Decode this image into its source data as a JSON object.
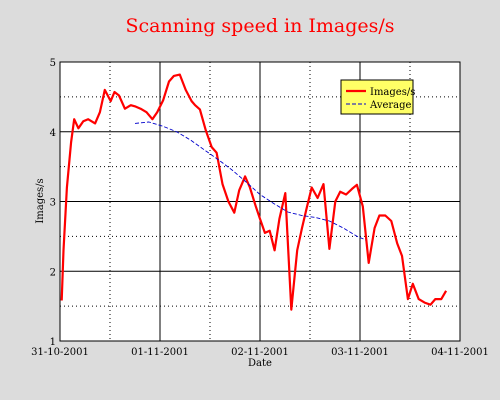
{
  "colors": {
    "background": "#dcdcdc",
    "plot_background": "#ffffff",
    "title": "#ff0000",
    "series_images": "#ff0000",
    "series_average": "#0000cc",
    "legend_background": "#ffff66"
  },
  "chart_data": {
    "type": "line",
    "title": "Scanning speed in Images/s",
    "xlabel": "Date",
    "ylabel": "Images/s",
    "x_unit": "days",
    "xlim": [
      "31-10-2001",
      "04-11-2001"
    ],
    "ylim": [
      1,
      5
    ],
    "yticks": [
      1,
      2,
      3,
      4,
      5
    ],
    "ytick_labels": [
      "1",
      "2",
      "3",
      "4",
      "5"
    ],
    "xticks": [
      "31-10-2001",
      "01-11-2001",
      "02-11-2001",
      "03-11-2001",
      "04-11-2001"
    ],
    "xtick_labels": [
      "31-10-2001",
      "01-11-2001",
      "02-11-2001",
      "03-11-2001",
      "04-11-2001"
    ],
    "grid": "major solid, minor dotted",
    "legend_position": "top-right",
    "series": [
      {
        "name": "Images/s",
        "style": "solid",
        "x": [
          "31-10-2001 00:25",
          "31-10-2001 00:50",
          "31-10-2001 01:40",
          "31-10-2001 02:40",
          "31-10-2001 03:25",
          "31-10-2001 04:25",
          "31-10-2001 05:35",
          "31-10-2001 06:45",
          "31-10-2001 08:25",
          "31-10-2001 09:35",
          "31-10-2001 10:45",
          "31-10-2001 12:10",
          "31-10-2001 13:05",
          "31-10-2001 14:10",
          "31-10-2001 15:35",
          "31-10-2001 17:00",
          "31-10-2001 18:10",
          "31-10-2001 19:20",
          "31-10-2001 20:45",
          "31-10-2001 22:10",
          "31-10-2001 23:20",
          "01-11-2001 00:45",
          "01-11-2001 02:10",
          "01-11-2001 03:20",
          "01-11-2001 04:45",
          "01-11-2001 06:10",
          "01-11-2001 07:35",
          "01-11-2001 08:25",
          "01-11-2001 09:35",
          "01-11-2001 11:00",
          "01-11-2001 12:25",
          "01-11-2001 13:35",
          "01-11-2001 15:00",
          "01-11-2001 16:25",
          "01-11-2001 17:50",
          "01-11-2001 19:00",
          "01-11-2001 20:25",
          "01-11-2001 21:35",
          "01-11-2001 23:00",
          "02-11-2001 00:00",
          "02-11-2001 01:10",
          "02-11-2001 02:20",
          "02-11-2001 03:30",
          "02-11-2001 04:40",
          "02-11-2001 06:05",
          "02-11-2001 07:30",
          "02-11-2001 08:55",
          "02-11-2001 10:05",
          "02-11-2001 11:15",
          "02-11-2001 12:25",
          "02-11-2001 13:50",
          "02-11-2001 15:15",
          "02-11-2001 16:40",
          "02-11-2001 18:05",
          "02-11-2001 19:15",
          "02-11-2001 20:40",
          "02-11-2001 22:05",
          "02-11-2001 23:15",
          "03-11-2001 00:40",
          "03-11-2001 02:05",
          "03-11-2001 03:30",
          "03-11-2001 04:40",
          "03-11-2001 06:05",
          "03-11-2001 07:30",
          "03-11-2001 08:55",
          "03-11-2001 10:05",
          "03-11-2001 11:30",
          "03-11-2001 12:40",
          "03-11-2001 14:05",
          "03-11-2001 15:30",
          "03-11-2001 16:55",
          "03-11-2001 18:05",
          "03-11-2001 19:30",
          "03-11-2001 20:40"
        ],
        "values": [
          1.58,
          2.3,
          3.2,
          3.85,
          4.18,
          4.05,
          4.15,
          4.18,
          4.12,
          4.28,
          4.6,
          4.44,
          4.57,
          4.52,
          4.33,
          4.38,
          4.36,
          4.33,
          4.28,
          4.18,
          4.28,
          4.45,
          4.72,
          4.8,
          4.82,
          4.6,
          4.44,
          4.38,
          4.32,
          4.02,
          3.78,
          3.7,
          3.25,
          3.0,
          2.84,
          3.16,
          3.36,
          3.2,
          2.93,
          2.75,
          2.55,
          2.58,
          2.3,
          2.75,
          3.12,
          1.45,
          2.3,
          2.62,
          2.92,
          3.2,
          3.05,
          3.25,
          2.32,
          3.0,
          3.14,
          3.1,
          3.18,
          3.24,
          2.93,
          2.12,
          2.62,
          2.8,
          2.8,
          2.72,
          2.4,
          2.22,
          1.6,
          1.82,
          1.6,
          1.55,
          1.52,
          1.6,
          1.6,
          1.72
        ]
      },
      {
        "name": "Average",
        "style": "dashed",
        "x": [
          "31-10-2001 18:00",
          "31-10-2001 21:20",
          "01-11-2001 00:40",
          "01-11-2001 04:00",
          "01-11-2001 07:20",
          "01-11-2001 10:40",
          "01-11-2001 14:00",
          "01-11-2001 17:20",
          "01-11-2001 20:40",
          "02-11-2001 00:00",
          "02-11-2001 03:20",
          "02-11-2001 06:40",
          "02-11-2001 10:00",
          "02-11-2001 13:20",
          "02-11-2001 16:40",
          "02-11-2001 20:00",
          "02-11-2001 23:20",
          "03-11-2001 01:20"
        ],
        "values": [
          4.12,
          4.14,
          4.08,
          4.0,
          3.88,
          3.74,
          3.6,
          3.45,
          3.28,
          3.1,
          2.97,
          2.85,
          2.8,
          2.77,
          2.72,
          2.62,
          2.5,
          2.45
        ]
      }
    ]
  }
}
